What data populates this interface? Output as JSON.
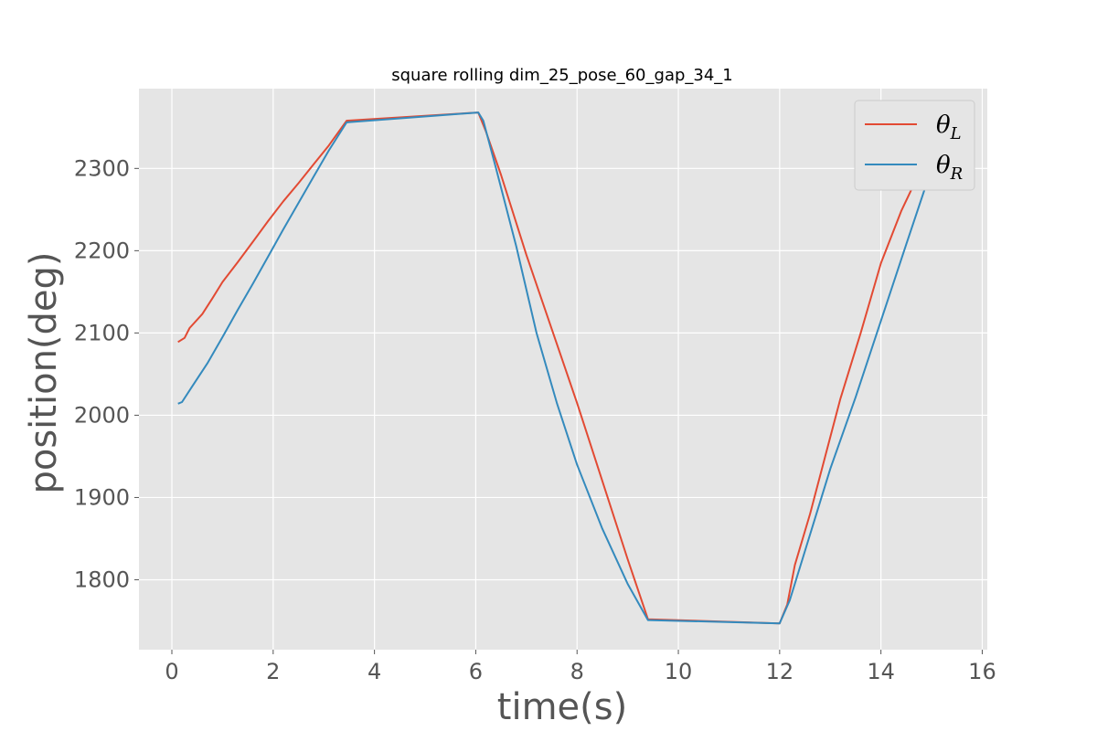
{
  "chart_data": {
    "type": "line",
    "title": "square rolling dim_25_pose_60_gap_34_1",
    "xlabel": "time(s)",
    "ylabel": "position(deg)",
    "xlim": [
      -0.65,
      16.1
    ],
    "ylim": [
      1715,
      2397
    ],
    "xticks": [
      0,
      2,
      4,
      6,
      8,
      10,
      12,
      14,
      16
    ],
    "yticks": [
      1800,
      1900,
      2000,
      2100,
      2200,
      2300
    ],
    "grid": true,
    "legend_position": "top-right",
    "series": [
      {
        "name": "θ_L",
        "legend_main": "θ",
        "legend_sub": "L",
        "color": "#E24A33",
        "points": [
          [
            0.12,
            2089
          ],
          [
            0.25,
            2094
          ],
          [
            0.35,
            2106
          ],
          [
            0.6,
            2123
          ],
          [
            0.8,
            2142
          ],
          [
            1.0,
            2162
          ],
          [
            1.3,
            2186
          ],
          [
            1.6,
            2211
          ],
          [
            1.9,
            2236
          ],
          [
            2.2,
            2260
          ],
          [
            2.5,
            2282
          ],
          [
            2.8,
            2305
          ],
          [
            3.1,
            2328
          ],
          [
            3.45,
            2358
          ],
          [
            6.05,
            2368
          ],
          [
            6.2,
            2345
          ],
          [
            6.5,
            2292
          ],
          [
            7.0,
            2195
          ],
          [
            7.5,
            2105
          ],
          [
            8.0,
            2015
          ],
          [
            8.5,
            1920
          ],
          [
            9.0,
            1825
          ],
          [
            9.4,
            1752
          ],
          [
            12.0,
            1747
          ],
          [
            12.15,
            1770
          ],
          [
            12.3,
            1818
          ],
          [
            12.6,
            1880
          ],
          [
            12.9,
            1950
          ],
          [
            13.2,
            2020
          ],
          [
            13.6,
            2100
          ],
          [
            14.0,
            2185
          ],
          [
            14.4,
            2248
          ],
          [
            14.8,
            2300
          ],
          [
            15.2,
            2345
          ]
        ]
      },
      {
        "name": "θ_R",
        "legend_main": "θ",
        "legend_sub": "R",
        "color": "#348ABD",
        "points": [
          [
            0.12,
            2014
          ],
          [
            0.2,
            2016
          ],
          [
            0.4,
            2035
          ],
          [
            0.7,
            2063
          ],
          [
            1.0,
            2095
          ],
          [
            1.3,
            2128
          ],
          [
            1.6,
            2160
          ],
          [
            1.9,
            2193
          ],
          [
            2.2,
            2226
          ],
          [
            2.5,
            2258
          ],
          [
            2.8,
            2290
          ],
          [
            3.1,
            2322
          ],
          [
            3.45,
            2356
          ],
          [
            6.05,
            2368
          ],
          [
            6.15,
            2358
          ],
          [
            6.4,
            2300
          ],
          [
            6.8,
            2205
          ],
          [
            7.2,
            2100
          ],
          [
            7.6,
            2015
          ],
          [
            8.0,
            1940
          ],
          [
            8.5,
            1862
          ],
          [
            9.0,
            1795
          ],
          [
            9.4,
            1751
          ],
          [
            12.0,
            1747
          ],
          [
            12.2,
            1775
          ],
          [
            12.6,
            1855
          ],
          [
            13.0,
            1935
          ],
          [
            13.5,
            2022
          ],
          [
            14.0,
            2115
          ],
          [
            14.5,
            2208
          ],
          [
            15.0,
            2300
          ],
          [
            15.3,
            2348
          ]
        ]
      }
    ]
  }
}
